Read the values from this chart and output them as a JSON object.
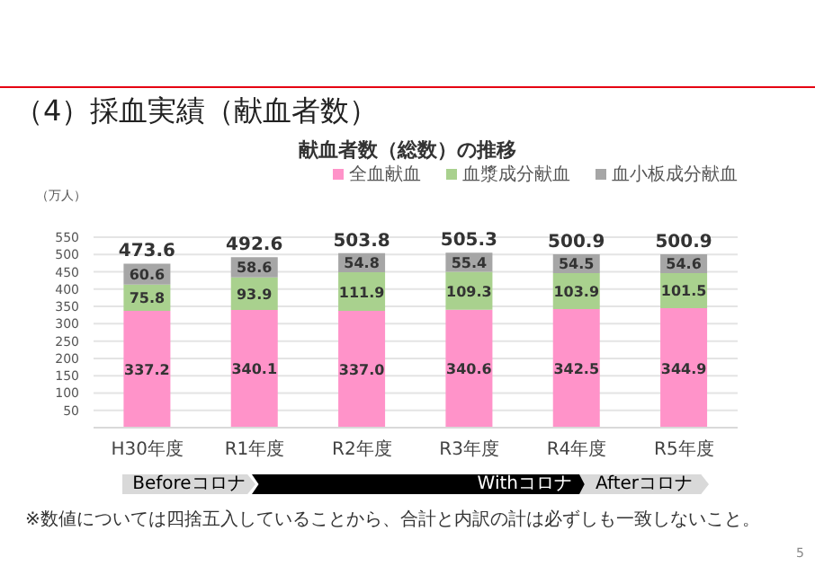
{
  "chart_data": {
    "type": "bar",
    "title": "（4）採血実績（献血者数）",
    "subtitle": "献血者数（総数）の推移",
    "ylabel": "（万人）",
    "categories": [
      "H30年度",
      "R1年度",
      "R2年度",
      "R3年度",
      "R4年度",
      "R5年度"
    ],
    "series": [
      {
        "name": "全血献血",
        "color": "#ff93c9",
        "values": [
          337.2,
          340.1,
          337.0,
          340.6,
          342.5,
          344.9
        ],
        "value_labels": [
          "337.2",
          "340.1",
          "337.0",
          "340.6",
          "342.5",
          "344.9"
        ]
      },
      {
        "name": "血漿成分献血",
        "color": "#a9d18e",
        "values": [
          75.8,
          93.9,
          111.9,
          109.3,
          103.9,
          101.5
        ],
        "value_labels": [
          "75.8",
          "93.9",
          "111.9",
          "109.3",
          "103.9",
          "101.5"
        ]
      },
      {
        "name": "血小板成分献血",
        "color": "#a6a6a6",
        "values": [
          60.6,
          58.6,
          54.8,
          55.4,
          54.5,
          54.6
        ],
        "value_labels": [
          "60.6",
          "58.6",
          "54.8",
          "55.4",
          "54.5",
          "54.6"
        ]
      }
    ],
    "stacked": true,
    "totals": [
      "473.6",
      "492.6",
      "503.8",
      "505.3",
      "500.9",
      "500.9"
    ],
    "ylim": [
      0,
      550
    ],
    "yticks": [
      50,
      100,
      150,
      200,
      250,
      300,
      350,
      400,
      450,
      500,
      550
    ],
    "grid": "y",
    "legend": "top right",
    "annotations": [
      "Beforeコロナ",
      "Withコロナ",
      "Afterコロナ",
      "※数値については四捨五入していることから、合計と内訳の計は必ずしも一致しないこと。",
      "5"
    ]
  }
}
